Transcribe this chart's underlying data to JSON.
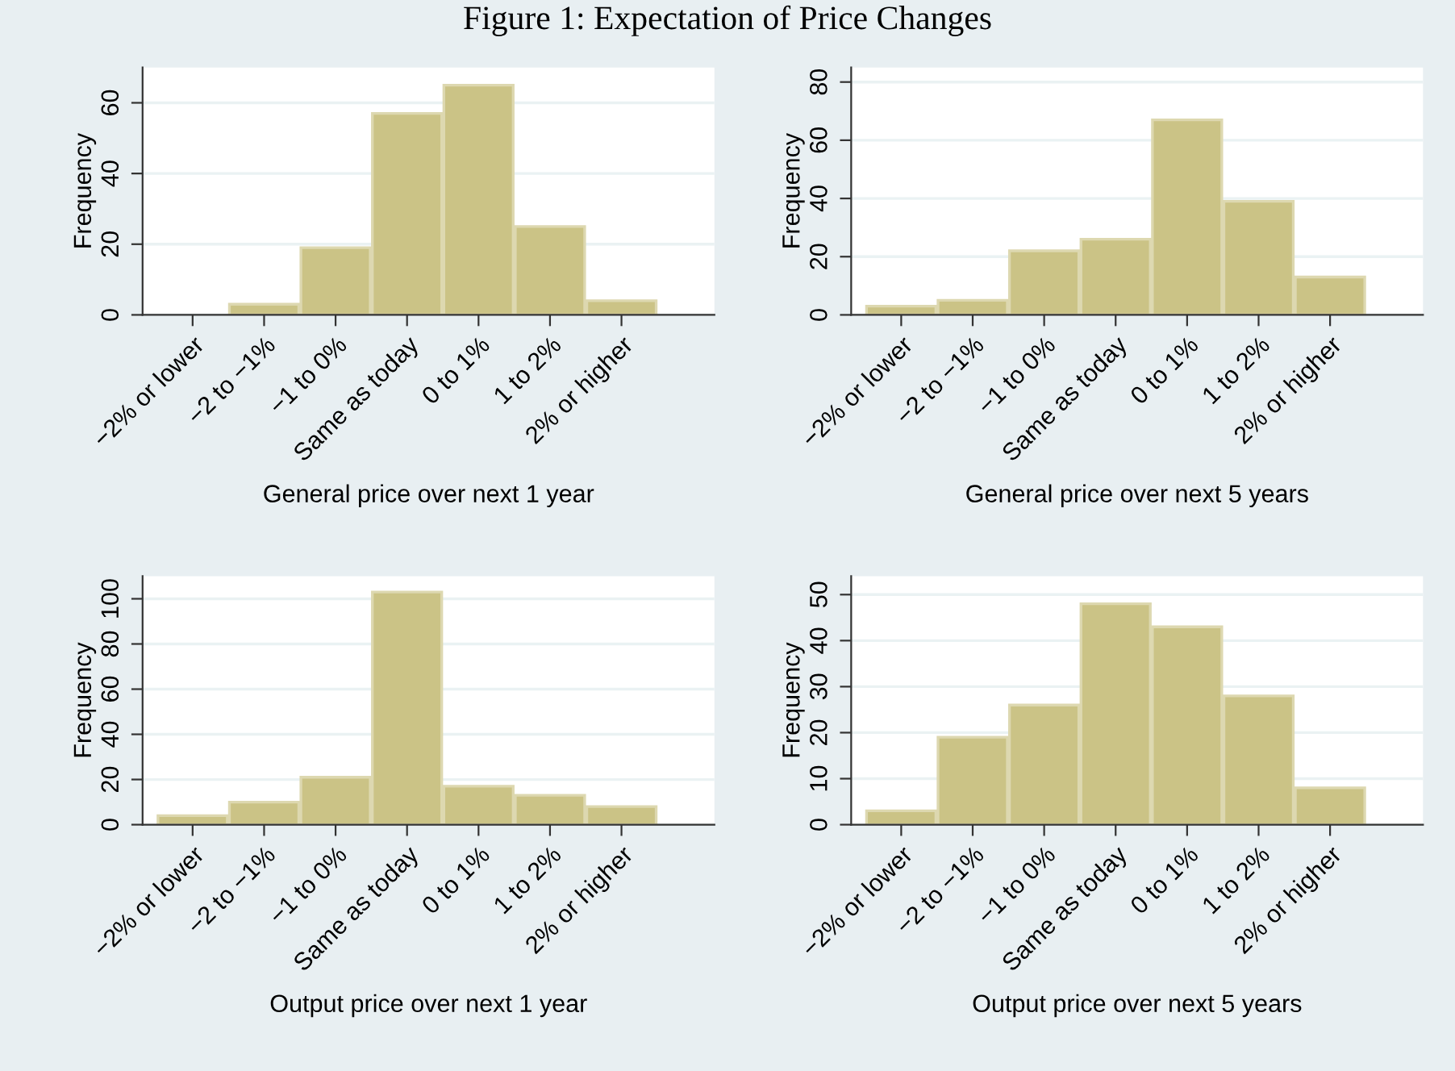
{
  "chart_data": [
    {
      "type": "bar",
      "title": "Figure 1: Expectation of Price Changes",
      "xlabel": "General price over next 1 year",
      "ylabel": "Frequency",
      "categories": [
        "−2% or lower",
        "−2 to −1%",
        "−1 to 0%",
        "Same as today",
        "0 to 1%",
        "1 to 2%",
        "2% or higher"
      ],
      "values": [
        0,
        3,
        19,
        57,
        65,
        25,
        4
      ],
      "color": "#cbc386",
      "ylim": [
        0,
        70
      ],
      "yticks": [
        0,
        20,
        40,
        60
      ],
      "grid": "y"
    },
    {
      "type": "bar",
      "xlabel": "General price over next 5 years",
      "ylabel": "Frequency",
      "categories": [
        "−2% or lower",
        "−2 to −1%",
        "−1 to 0%",
        "Same as today",
        "0 to 1%",
        "1 to 2%",
        "2% or higher"
      ],
      "values": [
        3,
        5,
        22,
        26,
        67,
        39,
        13
      ],
      "color": "#cbc386",
      "ylim": [
        0,
        85
      ],
      "yticks": [
        0,
        20,
        40,
        60,
        80
      ],
      "grid": "y"
    },
    {
      "type": "bar",
      "xlabel": "Output price over next 1 year",
      "ylabel": "Frequency",
      "categories": [
        "−2% or lower",
        "−2 to −1%",
        "−1 to 0%",
        "Same as today",
        "0 to 1%",
        "1 to 2%",
        "2% or higher"
      ],
      "values": [
        4,
        10,
        21,
        103,
        17,
        13,
        8
      ],
      "color": "#cbc386",
      "ylim": [
        0,
        110
      ],
      "yticks": [
        0,
        20,
        40,
        60,
        80,
        100
      ],
      "grid": "y"
    },
    {
      "type": "bar",
      "xlabel": "Output price over next 5 years",
      "ylabel": "Frequency",
      "categories": [
        "−2% or lower",
        "−2 to −1%",
        "−1 to 0%",
        "Same as today",
        "0 to 1%",
        "1 to 2%",
        "2% or higher"
      ],
      "values": [
        3,
        19,
        26,
        48,
        43,
        28,
        8
      ],
      "color": "#cbc386",
      "ylim": [
        0,
        54
      ],
      "yticks": [
        0,
        10,
        20,
        30,
        40,
        50
      ],
      "grid": "y"
    }
  ]
}
